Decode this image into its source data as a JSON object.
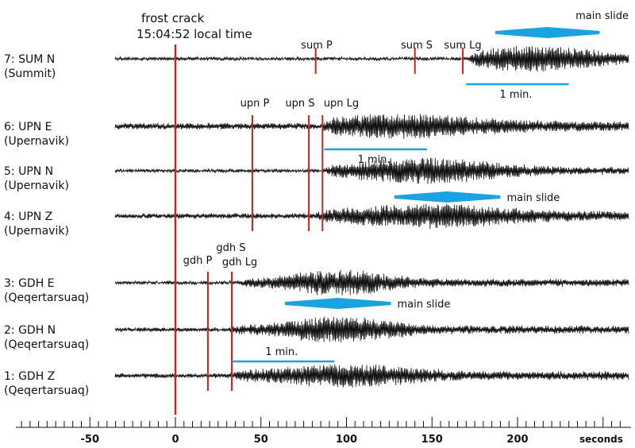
{
  "chart_data": {
    "type": "line",
    "title": "",
    "xlabel": "seconds",
    "xlim": [
      -100,
      260
    ],
    "x_ticks": [
      -50,
      0,
      50,
      100,
      150,
      200
    ],
    "x_tick_labels": [
      "-50",
      "0",
      "50",
      "100",
      "150",
      "200"
    ],
    "event": {
      "label": "frost crack",
      "time_label": "15:04:52 local time",
      "x": 0,
      "color": "#cc2222"
    },
    "trace_color": "#111111",
    "phase_color": "#cc2222",
    "accent_color": "#1aa3e0",
    "traces": [
      {
        "id": 7,
        "name": "7: SUM N",
        "station": "(Summit)",
        "onset": 170,
        "peak": 210,
        "spread": 42,
        "base_amp": 0.12,
        "max_amp": 1.0
      },
      {
        "id": 6,
        "name": "6: UPN E",
        "station": "(Upernavik)",
        "onset": 85,
        "peak": 130,
        "spread": 55,
        "base_amp": 0.25,
        "max_amp": 0.95
      },
      {
        "id": 5,
        "name": "5: UPN N",
        "station": "(Upernavik)",
        "onset": 85,
        "peak": 145,
        "spread": 50,
        "base_amp": 0.12,
        "max_amp": 1.0
      },
      {
        "id": 4,
        "name": "4: UPN Z",
        "station": "(Upernavik)",
        "onset": 80,
        "peak": 150,
        "spread": 55,
        "base_amp": 0.2,
        "max_amp": 0.95
      },
      {
        "id": 3,
        "name": "3: GDH E",
        "station": "(Qeqertarsuaq)",
        "onset": 35,
        "peak": 95,
        "spread": 35,
        "base_amp": 0.12,
        "max_amp": 1.0
      },
      {
        "id": 2,
        "name": "2: GDH N",
        "station": "(Qeqertarsuaq)",
        "onset": 30,
        "peak": 95,
        "spread": 38,
        "base_amp": 0.15,
        "max_amp": 1.0
      },
      {
        "id": 1,
        "name": "1: GDH Z",
        "station": "(Qeqertarsuaq)",
        "onset": 30,
        "peak": 100,
        "spread": 45,
        "base_amp": 0.18,
        "max_amp": 0.9
      }
    ],
    "phase_picks": [
      {
        "label": "sum P",
        "x": 82,
        "group": "sum"
      },
      {
        "label": "sum S",
        "x": 140,
        "group": "sum"
      },
      {
        "label": "sum Lg",
        "x": 168,
        "group": "sum"
      },
      {
        "label": "upn P",
        "x": 45,
        "group": "upn"
      },
      {
        "label": "upn S",
        "x": 78,
        "group": "upn"
      },
      {
        "label": "upn Lg",
        "x": 86,
        "group": "upn"
      },
      {
        "label": "gdh P",
        "x": 19,
        "group": "gdh"
      },
      {
        "label": "gdh S",
        "x": 33,
        "group": "gdh"
      },
      {
        "label": "gdh Lg",
        "x": 33,
        "group": "gdh"
      }
    ],
    "scale_bars": [
      {
        "label": "1 min.",
        "start": 170,
        "end": 230
      },
      {
        "label": "1 min.",
        "start": 87,
        "end": 147
      },
      {
        "label": "1 min.",
        "start": 33,
        "end": 93
      }
    ],
    "main_slides": [
      {
        "label": "main slide",
        "start": 187,
        "end": 248
      },
      {
        "label": "main slide",
        "start": 128,
        "end": 190
      },
      {
        "label": "main slide",
        "start": 64,
        "end": 126
      }
    ]
  }
}
